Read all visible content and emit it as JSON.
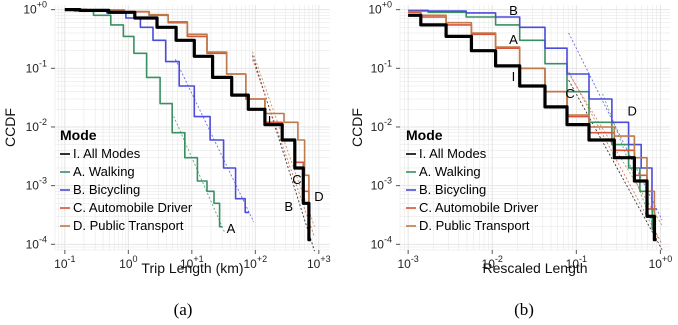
{
  "chart_data": [
    {
      "type": "line",
      "caption": "(a)",
      "xlabel": "Trip Length (km)",
      "ylabel": "CCDF",
      "xscale": "log",
      "yscale": "log",
      "xlim": [
        0.07,
        1500
      ],
      "ylim": [
        8e-05,
        1.2
      ],
      "xticks": [
        0.1,
        1,
        10,
        100,
        1000
      ],
      "xtick_labels": [
        "10^-1",
        "10^0",
        "10^+1",
        "10^+2",
        "10^+3"
      ],
      "yticks": [
        0.0001,
        0.001,
        0.01,
        0.1,
        1
      ],
      "ytick_labels": [
        "10^-4",
        "10^-3",
        "10^-2",
        "10^-1",
        "10^+0"
      ],
      "grid": true,
      "legend": {
        "title": "Mode",
        "placement": "bottom-left"
      },
      "series": [
        {
          "name": "I. All Modes",
          "label": "I",
          "color": "#000000",
          "width": 3.2,
          "x": [
            0.1,
            0.3,
            0.8,
            2,
            4,
            8,
            15,
            30,
            60,
            100,
            200,
            350,
            500,
            650,
            750
          ],
          "y": [
            1,
            0.97,
            0.9,
            0.72,
            0.5,
            0.3,
            0.16,
            0.07,
            0.035,
            0.02,
            0.011,
            0.006,
            0.002,
            0.0005,
            0.00012
          ]
        },
        {
          "name": "A. Walking",
          "label": "A",
          "color": "#3a8f63",
          "width": 1.6,
          "x": [
            0.1,
            0.2,
            0.4,
            0.7,
            1,
            1.5,
            2.5,
            4,
            6,
            10,
            15,
            20,
            25,
            30
          ],
          "y": [
            1,
            0.95,
            0.8,
            0.55,
            0.35,
            0.18,
            0.07,
            0.025,
            0.008,
            0.003,
            0.0012,
            0.0008,
            0.0005,
            0.0002
          ]
        },
        {
          "name": "B. Bicycling",
          "label": "B",
          "color": "#4b4bdc",
          "width": 1.6,
          "x": [
            0.1,
            0.3,
            0.7,
            1.2,
            2,
            3,
            5,
            8,
            15,
            25,
            40,
            60,
            80
          ],
          "y": [
            1,
            0.97,
            0.88,
            0.72,
            0.5,
            0.3,
            0.13,
            0.05,
            0.015,
            0.006,
            0.002,
            0.0006,
            0.00035
          ]
        },
        {
          "name": "C. Automobile Driver",
          "label": "C",
          "color": "#d6543a",
          "width": 1.6,
          "x": [
            0.1,
            0.5,
            1.5,
            3,
            6,
            12,
            25,
            50,
            100,
            200,
            350,
            500,
            650,
            750
          ],
          "y": [
            1,
            0.98,
            0.92,
            0.8,
            0.6,
            0.35,
            0.18,
            0.08,
            0.03,
            0.012,
            0.006,
            0.0025,
            0.0008,
            0.0002
          ]
        },
        {
          "name": "D. Public Transport",
          "label": "D",
          "color": "#bd7a4a",
          "width": 1.6,
          "x": [
            0.1,
            0.5,
            1.5,
            3,
            6,
            12,
            25,
            50,
            100,
            200,
            400,
            550,
            650,
            750
          ],
          "y": [
            1,
            0.99,
            0.93,
            0.82,
            0.62,
            0.38,
            0.19,
            0.08,
            0.03,
            0.017,
            0.012,
            0.006,
            0.0015,
            0.0003
          ]
        }
      ]
    },
    {
      "type": "line",
      "caption": "(b)",
      "xlabel": "Rescaled Length",
      "ylabel": "CCDF",
      "xscale": "log",
      "yscale": "log",
      "xlim": [
        0.0008,
        1.3
      ],
      "ylim": [
        8e-05,
        1.2
      ],
      "xticks": [
        0.001,
        0.01,
        0.1,
        1
      ],
      "xtick_labels": [
        "10^-3",
        "10^-2",
        "10^-1",
        "10^+0"
      ],
      "yticks": [
        0.0001,
        0.001,
        0.01,
        0.1,
        1
      ],
      "ytick_labels": [
        "10^-4",
        "10^-3",
        "10^-2",
        "10^-1",
        "10^+0"
      ],
      "grid": true,
      "legend": {
        "title": "Mode",
        "placement": "bottom-left"
      },
      "series": [
        {
          "name": "I. All Modes",
          "label": "I",
          "color": "#000000",
          "width": 3.2,
          "x": [
            0.001,
            0.002,
            0.004,
            0.008,
            0.015,
            0.03,
            0.06,
            0.1,
            0.2,
            0.4,
            0.6,
            0.8,
            0.9
          ],
          "y": [
            0.8,
            0.55,
            0.35,
            0.2,
            0.11,
            0.05,
            0.022,
            0.011,
            0.006,
            0.003,
            0.0012,
            0.0003,
            0.00012
          ]
        },
        {
          "name": "A. Walking",
          "label": "A",
          "color": "#3a8f63",
          "width": 1.6,
          "x": [
            0.001,
            0.003,
            0.008,
            0.015,
            0.03,
            0.06,
            0.1,
            0.2,
            0.35,
            0.5,
            0.65,
            0.75,
            0.85
          ],
          "y": [
            0.95,
            0.9,
            0.75,
            0.55,
            0.3,
            0.12,
            0.04,
            0.012,
            0.005,
            0.002,
            0.0008,
            0.0004,
            0.00018
          ]
        },
        {
          "name": "B. Bicycling",
          "label": "B",
          "color": "#4b4bdc",
          "width": 1.6,
          "x": [
            0.001,
            0.003,
            0.008,
            0.015,
            0.03,
            0.06,
            0.1,
            0.2,
            0.35,
            0.5,
            0.7,
            0.9
          ],
          "y": [
            0.97,
            0.95,
            0.88,
            0.75,
            0.5,
            0.22,
            0.08,
            0.03,
            0.012,
            0.005,
            0.002,
            0.0004
          ]
        },
        {
          "name": "C. Automobile Driver",
          "label": "C",
          "color": "#d6543a",
          "width": 1.6,
          "x": [
            0.001,
            0.002,
            0.004,
            0.008,
            0.015,
            0.03,
            0.06,
            0.1,
            0.2,
            0.4,
            0.6,
            0.8,
            0.9
          ],
          "y": [
            0.9,
            0.75,
            0.55,
            0.38,
            0.22,
            0.1,
            0.04,
            0.015,
            0.008,
            0.004,
            0.0015,
            0.0004,
            0.00015
          ]
        },
        {
          "name": "D. Public Transport",
          "label": "D",
          "color": "#bd7a4a",
          "width": 1.6,
          "x": [
            0.001,
            0.002,
            0.004,
            0.008,
            0.015,
            0.03,
            0.06,
            0.1,
            0.2,
            0.4,
            0.6,
            0.8,
            0.9
          ],
          "y": [
            0.93,
            0.8,
            0.6,
            0.4,
            0.23,
            0.1,
            0.04,
            0.016,
            0.01,
            0.007,
            0.003,
            0.0008,
            0.0003
          ]
        }
      ]
    }
  ]
}
